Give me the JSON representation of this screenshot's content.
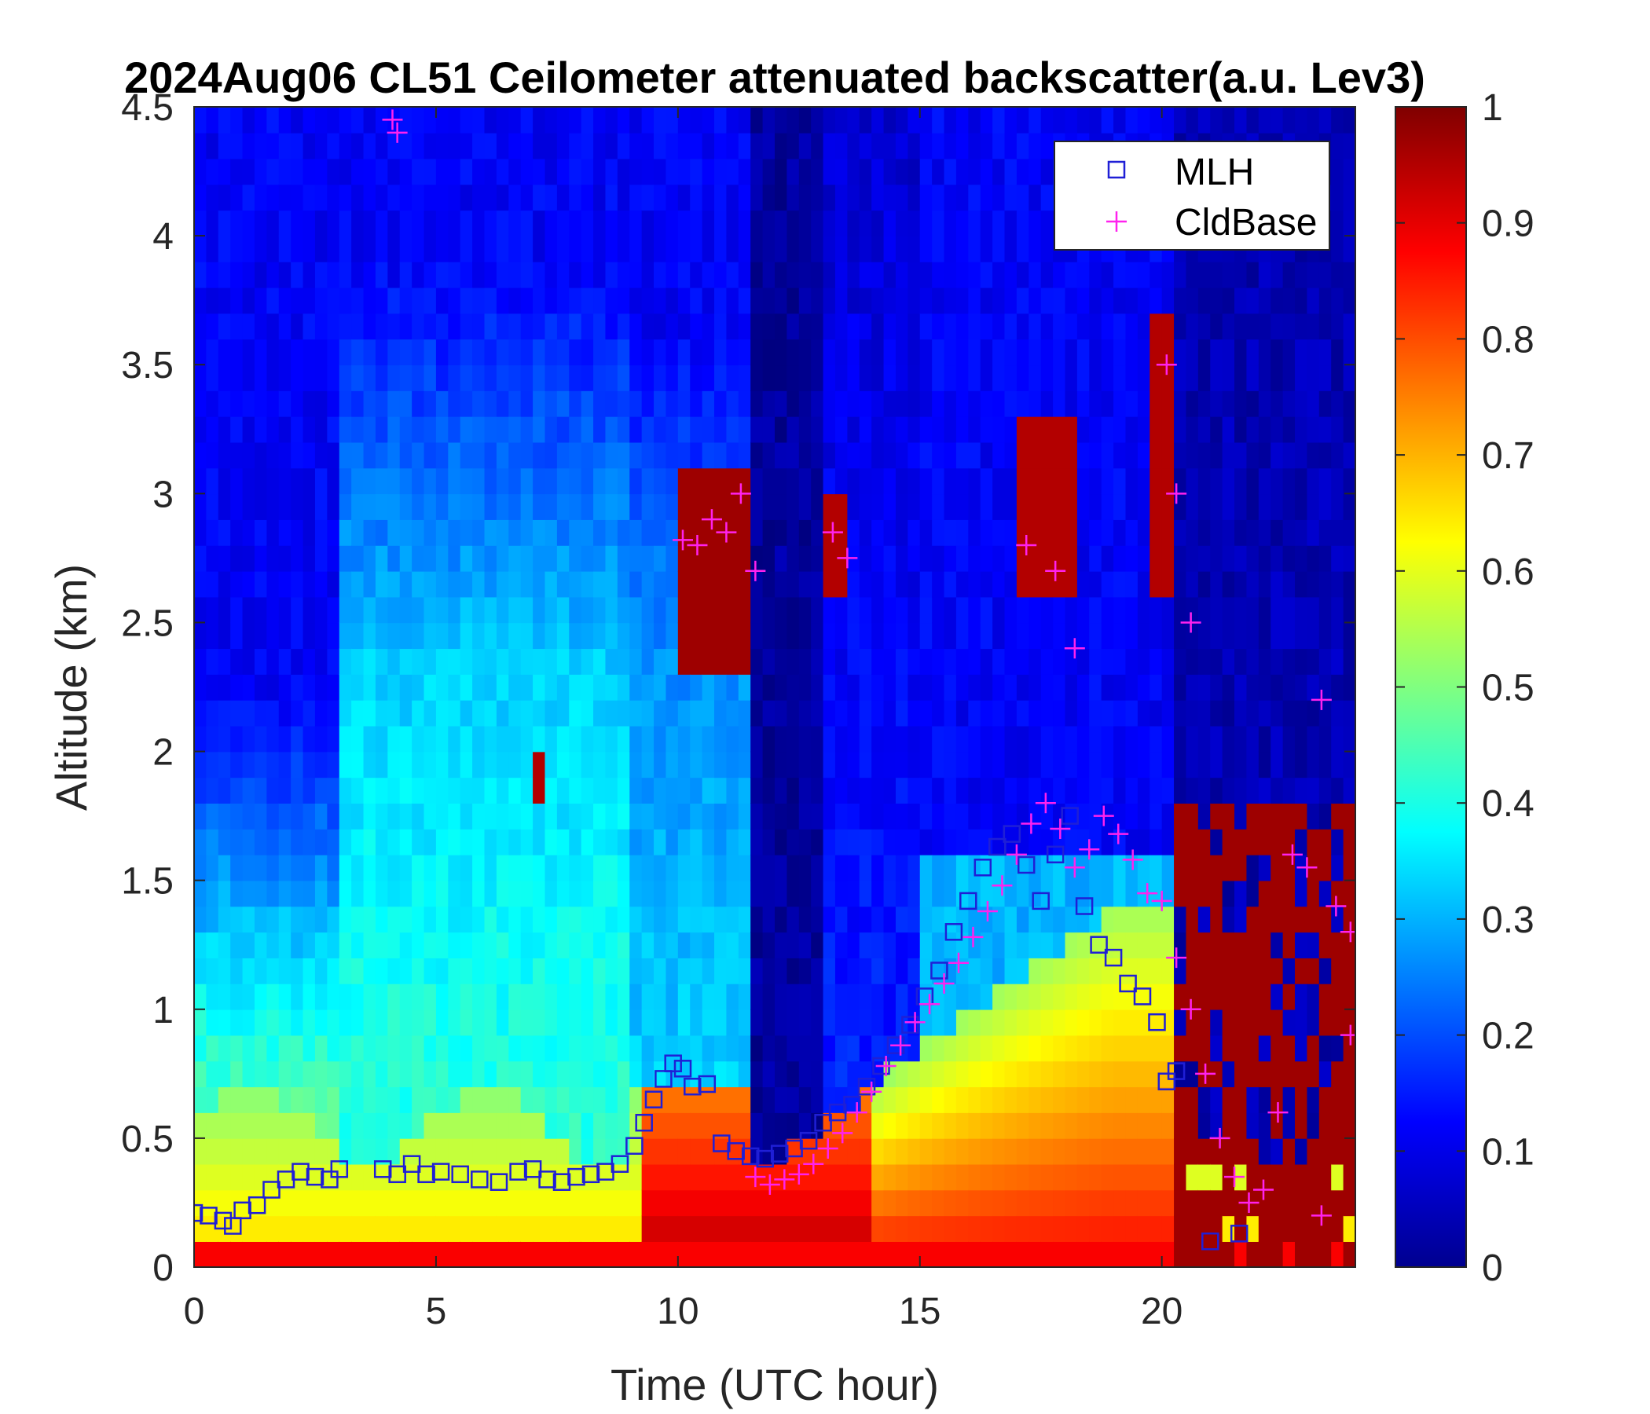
{
  "chart_data": {
    "type": "heatmap",
    "title": "2024Aug06 CL51 Ceilometer attenuated backscatter(a.u. Lev3)",
    "xlabel": "Time (UTC hour)",
    "ylabel": "Altitude (km)",
    "xlim": [
      0,
      24
    ],
    "ylim": [
      0,
      4.5
    ],
    "xticks": [
      "0",
      "5",
      "10",
      "15",
      "20"
    ],
    "yticks": [
      "0",
      "0.5",
      "1",
      "1.5",
      "2",
      "2.5",
      "3",
      "3.5",
      "4",
      "4.5"
    ],
    "colorbar": {
      "colormap": "jet",
      "range": [
        0,
        1
      ],
      "ticks": [
        "0",
        "0.1",
        "0.2",
        "0.3",
        "0.4",
        "0.5",
        "0.6",
        "0.7",
        "0.8",
        "0.9",
        "1"
      ]
    },
    "legend": {
      "position": "top-right",
      "entries": [
        {
          "label": "MLH",
          "marker": "square",
          "color": "#1f1fd6"
        },
        {
          "label": "CldBase",
          "marker": "plus",
          "color": "#ff22ee"
        }
      ]
    },
    "series": [
      {
        "name": "MLH",
        "x": [
          0.0,
          0.3,
          0.6,
          0.8,
          1.0,
          1.3,
          1.6,
          1.9,
          2.2,
          2.5,
          2.8,
          3.0,
          3.9,
          4.2,
          4.5,
          4.8,
          5.1,
          5.5,
          5.9,
          6.3,
          6.7,
          7.0,
          7.3,
          7.6,
          7.9,
          8.2,
          8.5,
          8.8,
          9.1,
          9.3,
          9.5,
          9.7,
          9.9,
          10.1,
          10.3,
          10.6,
          10.9,
          11.2,
          11.5,
          11.8,
          12.1,
          12.4,
          12.7,
          13.0,
          13.3,
          13.6,
          13.9,
          14.2,
          14.5,
          14.8,
          15.1,
          15.4,
          15.7,
          16.0,
          16.3,
          16.6,
          16.9,
          17.2,
          17.5,
          17.8,
          18.1,
          18.4,
          18.7,
          19.0,
          19.3,
          19.6,
          19.9,
          20.1,
          20.3,
          21.0,
          21.6
        ],
        "y": [
          0.21,
          0.2,
          0.18,
          0.16,
          0.22,
          0.24,
          0.3,
          0.34,
          0.37,
          0.35,
          0.34,
          0.38,
          0.38,
          0.36,
          0.4,
          0.36,
          0.37,
          0.36,
          0.34,
          0.33,
          0.37,
          0.38,
          0.34,
          0.33,
          0.35,
          0.36,
          0.37,
          0.4,
          0.47,
          0.56,
          0.65,
          0.73,
          0.79,
          0.77,
          0.7,
          0.71,
          0.48,
          0.45,
          0.43,
          0.42,
          0.44,
          0.46,
          0.49,
          0.56,
          0.6,
          0.63,
          0.7,
          0.78,
          0.86,
          0.94,
          1.05,
          1.15,
          1.3,
          1.42,
          1.55,
          1.63,
          1.68,
          1.56,
          1.42,
          1.6,
          1.75,
          1.4,
          1.25,
          1.2,
          1.1,
          1.05,
          0.95,
          0.72,
          0.76,
          0.1,
          0.13
        ]
      },
      {
        "name": "CldBase",
        "x": [
          4.1,
          4.2,
          10.1,
          10.4,
          10.7,
          11.0,
          11.3,
          11.6,
          13.2,
          13.5,
          11.6,
          11.9,
          12.2,
          12.5,
          12.8,
          13.1,
          13.4,
          13.7,
          14.0,
          14.3,
          14.6,
          14.9,
          15.2,
          15.5,
          15.8,
          16.1,
          16.4,
          16.7,
          17.0,
          17.3,
          17.6,
          17.9,
          18.2,
          18.5,
          18.8,
          19.1,
          19.4,
          19.7,
          20.0,
          20.3,
          20.6,
          20.9,
          21.2,
          21.5,
          21.8,
          22.1,
          22.4,
          22.7,
          23.0,
          23.3,
          23.6,
          23.9,
          17.2,
          17.8,
          18.2,
          20.1,
          20.3,
          20.6,
          23.3,
          23.9
        ],
        "y": [
          4.45,
          4.4,
          2.82,
          2.8,
          2.9,
          2.85,
          3.0,
          2.7,
          2.85,
          2.75,
          0.35,
          0.32,
          0.34,
          0.36,
          0.4,
          0.46,
          0.52,
          0.6,
          0.68,
          0.78,
          0.86,
          0.95,
          1.02,
          1.1,
          1.18,
          1.28,
          1.38,
          1.48,
          1.6,
          1.72,
          1.8,
          1.7,
          1.55,
          1.62,
          1.75,
          1.68,
          1.58,
          1.45,
          1.42,
          1.2,
          1.0,
          0.75,
          0.5,
          0.35,
          0.25,
          0.3,
          0.6,
          1.6,
          1.55,
          2.2,
          1.4,
          1.3,
          2.8,
          2.7,
          2.4,
          3.5,
          3.0,
          2.5,
          0.2,
          0.9
        ]
      }
    ]
  }
}
